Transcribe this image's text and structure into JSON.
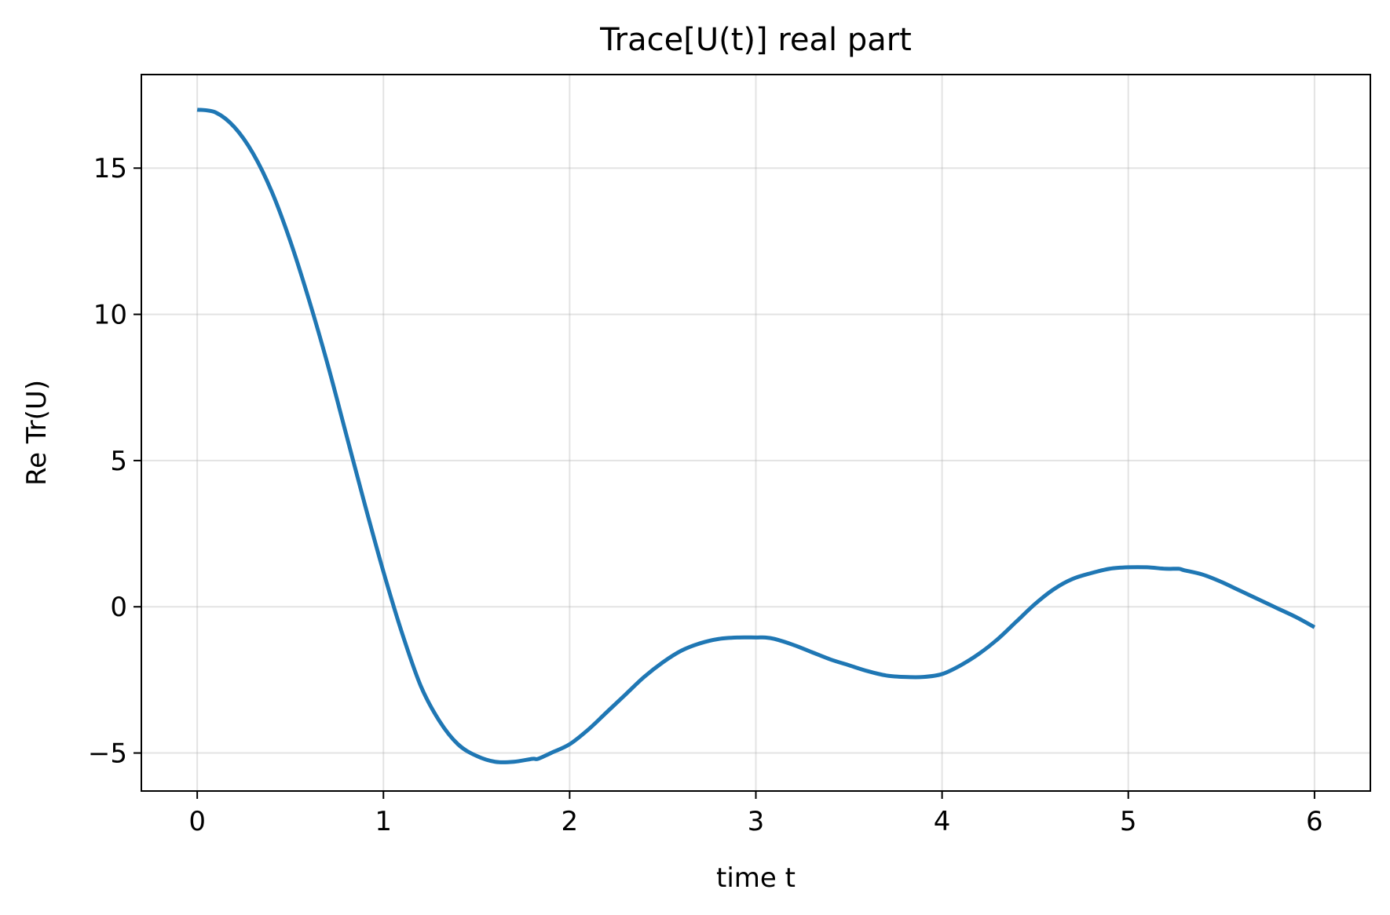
{
  "chart_data": {
    "type": "line",
    "title": "Trace[U(t)] real part",
    "xlabel": "time t",
    "ylabel": "Re Tr(U)",
    "xlim": [
      -0.3,
      6.3
    ],
    "ylim": [
      -6.3,
      18.2
    ],
    "xticks": [
      0,
      1,
      2,
      3,
      4,
      5,
      6
    ],
    "yticks": [
      -5,
      0,
      5,
      10,
      15
    ],
    "xtick_labels": [
      "0",
      "1",
      "2",
      "3",
      "4",
      "5",
      "6"
    ],
    "ytick_labels": [
      "−5",
      "0",
      "5",
      "10",
      "15"
    ],
    "grid": true,
    "line_color": "#1f77b4",
    "series": [
      {
        "x": [
          0,
          0.1,
          0.2,
          0.3,
          0.4,
          0.5,
          0.6,
          0.7,
          0.8,
          0.9,
          1.0,
          1.1,
          1.2,
          1.3,
          1.4,
          1.5,
          1.6,
          1.7,
          1.8,
          1.83,
          1.9,
          2.0,
          2.1,
          2.2,
          2.3,
          2.4,
          2.5,
          2.6,
          2.7,
          2.8,
          2.9,
          3.0,
          3.05,
          3.1,
          3.2,
          3.3,
          3.4,
          3.5,
          3.6,
          3.7,
          3.8,
          3.9,
          4.0,
          4.1,
          4.2,
          4.3,
          4.4,
          4.5,
          4.6,
          4.7,
          4.8,
          4.9,
          5.0,
          5.1,
          5.2,
          5.27,
          5.3,
          5.4,
          5.5,
          5.6,
          5.7,
          5.8,
          5.9,
          6.0
        ],
        "y": [
          17.0,
          16.9,
          16.4,
          15.5,
          14.2,
          12.5,
          10.5,
          8.3,
          5.9,
          3.5,
          1.2,
          -0.9,
          -2.7,
          -3.9,
          -4.7,
          -5.1,
          -5.3,
          -5.3,
          -5.2,
          -5.2,
          -5.0,
          -4.7,
          -4.2,
          -3.6,
          -3.0,
          -2.4,
          -1.9,
          -1.5,
          -1.25,
          -1.1,
          -1.05,
          -1.05,
          -1.05,
          -1.1,
          -1.3,
          -1.55,
          -1.8,
          -2.0,
          -2.2,
          -2.35,
          -2.4,
          -2.4,
          -2.3,
          -2.0,
          -1.6,
          -1.1,
          -0.5,
          0.1,
          0.6,
          0.95,
          1.15,
          1.3,
          1.35,
          1.35,
          1.3,
          1.3,
          1.25,
          1.1,
          0.85,
          0.55,
          0.25,
          -0.05,
          -0.35,
          -0.7
        ]
      }
    ]
  }
}
